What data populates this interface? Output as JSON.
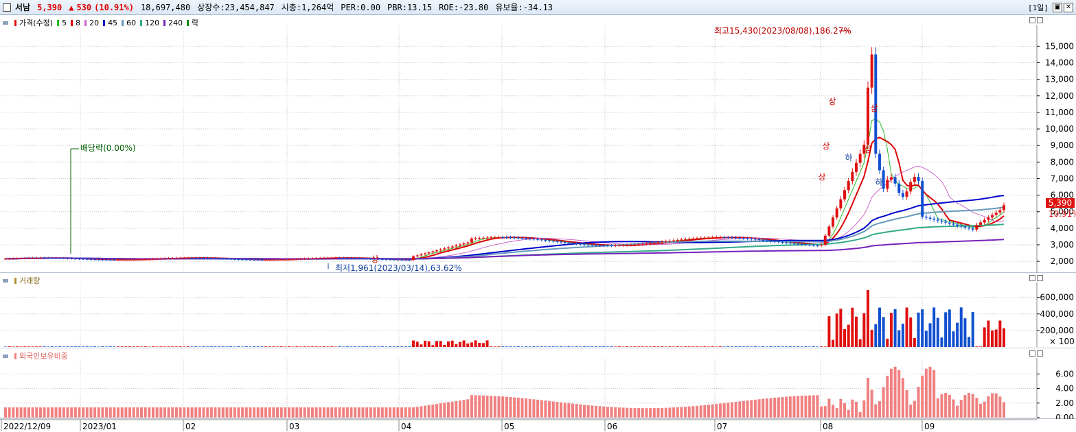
{
  "header": {
    "name": "서남",
    "price": "5,390",
    "change_arrow": "▲",
    "change": "530",
    "rate": "(10.91%)",
    "volume": "18,697,480",
    "listed": "상장수:23,454,847",
    "mcap": "시총:1,264억",
    "per": "PER:0.00",
    "pbr": "PBR:13.15",
    "roe": "ROE:-23.80",
    "float": "유보율:-34.13",
    "period": "[1일]"
  },
  "price_panel": {
    "legend": {
      "price": "가격(수정)",
      "ma": [
        "5",
        "8",
        "20",
        "45",
        "60",
        "120",
        "240"
      ],
      "ma_colors": [
        "#22bb22",
        "#dd0000",
        "#cc66cc",
        "#0000cc",
        "#6699bb",
        "#33aa88",
        "#7722bb"
      ],
      "drop": "락"
    },
    "annotations": {
      "high": "최고15,430(2023/08/08),186.27%",
      "low": "최저1,961(2023/03/14),63.62%",
      "dividend": "배당락(0.00%)",
      "limit_up": "상",
      "limit_down": "하"
    },
    "price_tag": "5,390",
    "rate_tag": "10.91%",
    "y_ticks": [
      2000,
      3000,
      4000,
      5000,
      6000,
      7000,
      8000,
      9000,
      10000,
      11000,
      12000,
      13000,
      14000,
      15000
    ],
    "y_range": [
      1300,
      16300
    ]
  },
  "volume_panel": {
    "legend": "거래량",
    "y_ticks": [
      200000,
      400000,
      600000
    ],
    "y_ticks_labels": [
      "200,000",
      "400,000",
      "600,000"
    ],
    "unit": "× 100",
    "y_max": 780000
  },
  "foreign_panel": {
    "legend": "외국인보유비중",
    "y_ticks": [
      0,
      2,
      4,
      6
    ],
    "y_ticks_labels": [
      "0.00",
      "2.00",
      "4.00",
      "6.00"
    ],
    "y_max": 8.2
  },
  "x_axis": {
    "labels": [
      "2022/12/09",
      "2023/01",
      "02",
      "03",
      "04",
      "05",
      "06",
      "07",
      "08",
      "09"
    ]
  },
  "colors": {
    "up": "#e01010",
    "down": "#1050d0",
    "foreign_bar": "#f08080"
  }
}
